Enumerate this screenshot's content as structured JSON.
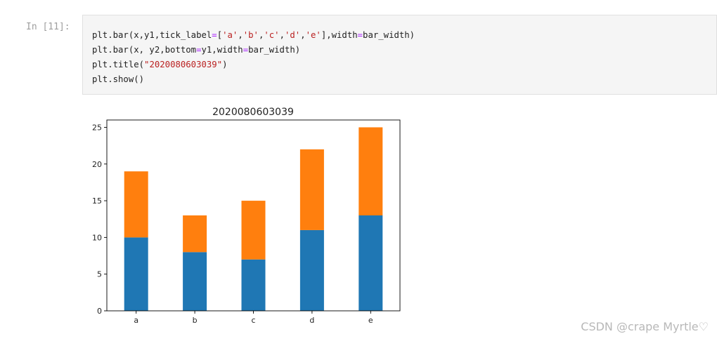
{
  "cell": {
    "prompt": "In [11]:",
    "code_lines": [
      "plt.bar(x,y1,tick_label=['a','b','c','d','e'],width=bar_width)",
      "plt.bar(x, y2,bottom=y1,width=bar_width)",
      "plt.title(\"2020080603039\")",
      "plt.show()"
    ]
  },
  "chart_data": {
    "type": "bar",
    "stacked": true,
    "title": "2020080603039",
    "categories": [
      "a",
      "b",
      "c",
      "d",
      "e"
    ],
    "series": [
      {
        "values": [
          10,
          8,
          7,
          11,
          13
        ],
        "color": "#1f77b4"
      },
      {
        "values": [
          9,
          5,
          8,
          11,
          12
        ],
        "color": "#ff7f0e"
      }
    ],
    "ylim": [
      0,
      26
    ],
    "yticks": [
      0,
      5,
      10,
      15,
      20,
      25
    ],
    "xlabel": "",
    "ylabel": "",
    "grid": false
  },
  "watermark": "CSDN @crape Myrtle♡"
}
